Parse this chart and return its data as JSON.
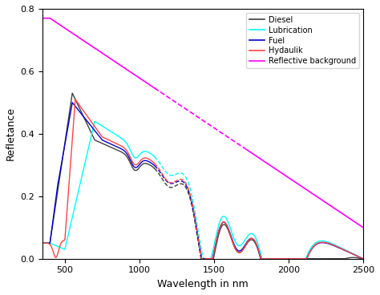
{
  "title": "",
  "xlabel": "Wavelength in nm",
  "ylabel": "Refletance",
  "xlim": [
    350,
    2500
  ],
  "ylim": [
    0,
    0.8
  ],
  "yticks": [
    0,
    0.2,
    0.4,
    0.6,
    0.8
  ],
  "xticks": [
    500,
    1000,
    1500,
    2000,
    2500
  ],
  "legend_labels": [
    "Diesel",
    "Lubrication",
    "Fuel",
    "Hydaulik",
    "Reflective background"
  ],
  "colors": {
    "Diesel": "#404040",
    "Lubrication": "#00ffff",
    "Fuel": "#0000cc",
    "Hydaulik": "#ff4444",
    "Reflective background": "#ff00ff"
  },
  "background_color": "#ffffff"
}
